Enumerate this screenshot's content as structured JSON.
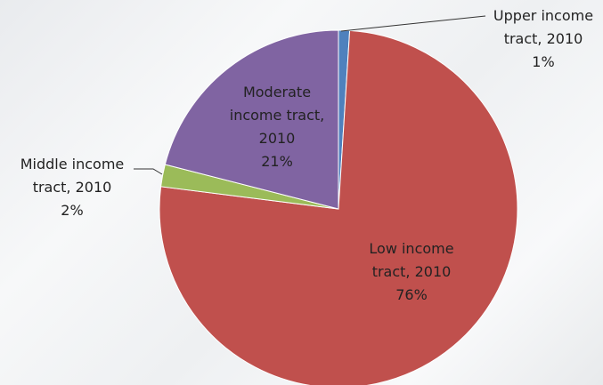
{
  "chart_data": {
    "type": "pie",
    "title": "",
    "slices": [
      {
        "category": "Upper income tract, 2010",
        "value": 1,
        "value_label": "1%",
        "label_lines": [
          "Upper income",
          "tract, 2010"
        ],
        "color": "#4f81bd"
      },
      {
        "category": "Low income tract, 2010",
        "value": 76,
        "value_label": "76%",
        "label_lines": [
          "Low income",
          "tract, 2010"
        ],
        "color": "#c0504d"
      },
      {
        "category": "Middle income tract, 2010",
        "value": 2,
        "value_label": "2%",
        "label_lines": [
          "Middle income",
          "tract, 2010"
        ],
        "color": "#9bbb59"
      },
      {
        "category": "Moderate income tract, 2010",
        "value": 21,
        "value_label": "21%",
        "label_lines": [
          "Moderate",
          "income tract,",
          "2010"
        ],
        "color": "#8064a2"
      }
    ]
  }
}
